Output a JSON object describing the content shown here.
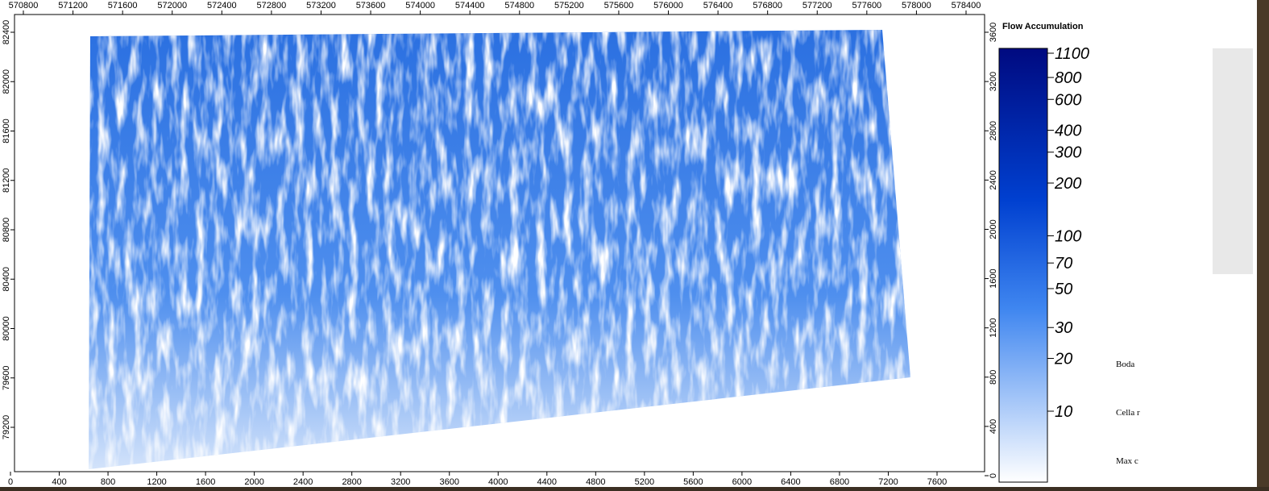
{
  "map": {
    "top_axis": {
      "ticks": [
        570800,
        571200,
        571600,
        572000,
        572400,
        572800,
        573200,
        573600,
        574000,
        574400,
        574800,
        575200,
        575600,
        576000,
        576400,
        576800,
        577200,
        577600,
        578000,
        578400
      ]
    },
    "left_axis": {
      "ticks": [
        82400,
        82000,
        81600,
        81200,
        80800,
        80400,
        80000,
        79600,
        79200
      ]
    },
    "bottom_axis": {
      "ticks": [
        0,
        400,
        800,
        1200,
        1600,
        2000,
        2400,
        2800,
        3200,
        3600,
        4000,
        4400,
        4800,
        5200,
        5600,
        6000,
        6400,
        6800,
        7200,
        7600
      ]
    },
    "right_axis": {
      "ticks": [
        3600,
        3200,
        2800,
        2400,
        2000,
        1600,
        1200,
        800,
        400,
        0
      ]
    },
    "legend": {
      "title": "Flow Accumulation",
      "scale": "log",
      "ticks": [
        1100,
        800,
        600,
        400,
        300,
        200,
        100,
        70,
        50,
        30,
        20,
        10
      ]
    },
    "notes": [
      "Boda",
      "Cella r",
      "Max c"
    ]
  }
}
